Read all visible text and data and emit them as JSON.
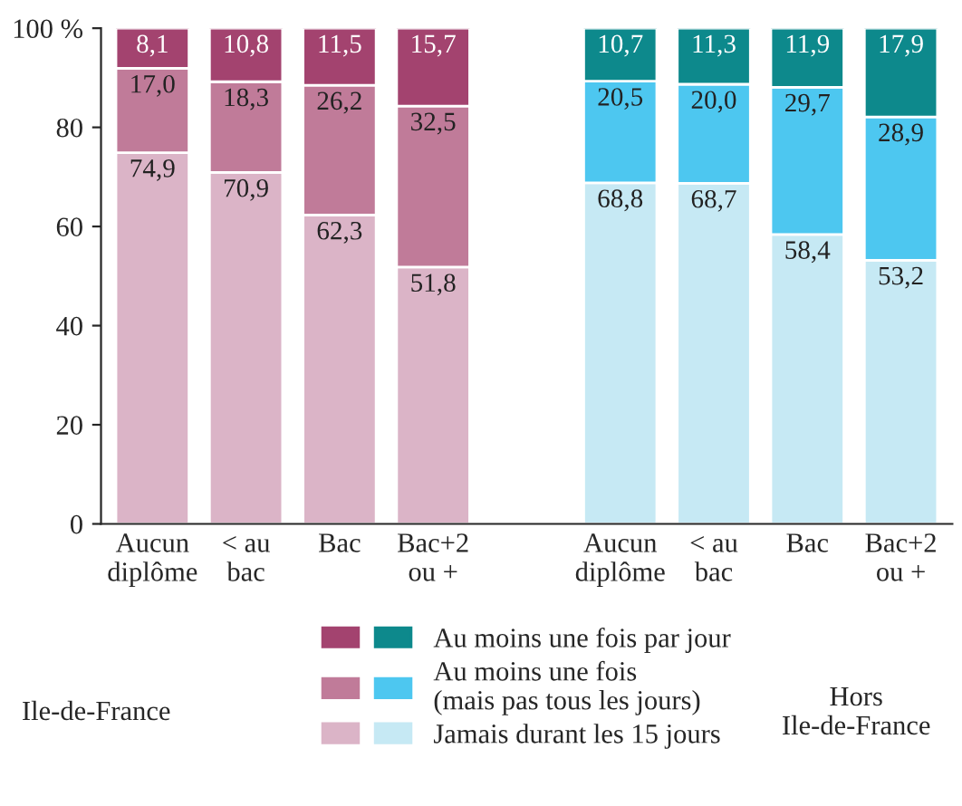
{
  "chart_data": {
    "type": "bar",
    "stacked": true,
    "categories": [
      "Aucun\ndiplôme",
      "< au\nbac",
      "Bac",
      "Bac+2\nou +",
      null,
      "Aucun\ndiplôme",
      "< au\nbac",
      "Bac",
      "Bac+2\nou +"
    ],
    "series": [
      {
        "name": "Jamais durant les 15 jours",
        "colors": [
          "#dbb4c7",
          "#dbb4c7",
          "#dbb4c7",
          "#dbb4c7",
          null,
          "#c6e9f4",
          "#c6e9f4",
          "#c6e9f4",
          "#c6e9f4"
        ],
        "values": [
          74.9,
          70.9,
          62.3,
          51.8,
          null,
          68.8,
          68.7,
          58.4,
          53.2
        ],
        "value_labels": [
          "74,9",
          "70,9",
          "62,3",
          "51,8",
          null,
          "68,8",
          "68,7",
          "58,4",
          "53,2"
        ]
      },
      {
        "name": "Au moins une fois\n(mais pas tous les jours)",
        "colors": [
          "#c07b99",
          "#c07b99",
          "#c07b99",
          "#c07b99",
          null,
          "#4dc7f0",
          "#4dc7f0",
          "#4dc7f0",
          "#4dc7f0"
        ],
        "values": [
          17.0,
          18.3,
          26.2,
          32.5,
          null,
          20.5,
          20.0,
          29.7,
          28.9
        ],
        "value_labels": [
          "17,0",
          "18,3",
          "26,2",
          "32,5",
          null,
          "20,5",
          "20,0",
          "29,7",
          "28,9"
        ]
      },
      {
        "name": "Au moins une fois par jour",
        "colors": [
          "#a3436f",
          "#a3436f",
          "#a3436f",
          "#a3436f",
          null,
          "#0d898c",
          "#0d898c",
          "#0d898c",
          "#0d898c"
        ],
        "values": [
          8.1,
          10.8,
          11.5,
          15.7,
          null,
          10.7,
          11.3,
          11.9,
          17.9
        ],
        "value_labels": [
          "8,1",
          "10,8",
          "11,5",
          "15,7",
          null,
          "10,7",
          "11,3",
          "11,9",
          "17,9"
        ]
      }
    ],
    "ylim": [
      0,
      100
    ],
    "yticks": [
      0,
      20,
      40,
      60,
      80,
      {
        "value": 100,
        "label": "100 %"
      }
    ],
    "grid": false,
    "legend": "bottom",
    "annotations": [
      "Ile-de-France",
      "Hors\nIle-de-France"
    ]
  }
}
